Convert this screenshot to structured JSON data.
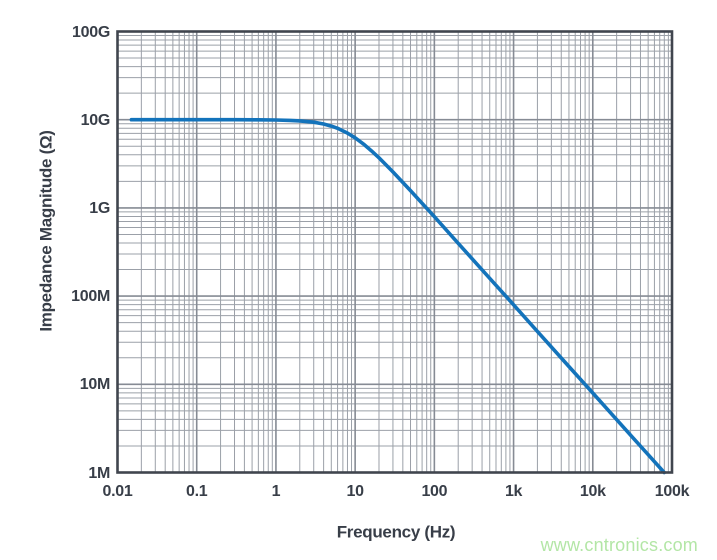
{
  "style": {
    "background": "#ffffff",
    "text_color": "#383e48",
    "frame_color": "#40454e",
    "grid_major_color": "#868b94",
    "grid_minor_color": "#9ba0a8",
    "curve_color": "#1373BB",
    "watermark_color": "#b3e6a6"
  },
  "watermark": {
    "text": "www.cntronics.com"
  },
  "chart_data": {
    "type": "line",
    "title": "",
    "xlabel": "Frequency (Hz)",
    "ylabel": "Impedance Magnitude (Ω)",
    "x_scale": "log",
    "y_scale": "log",
    "xlim": [
      0.01,
      100000
    ],
    "ylim": [
      1000000,
      100000000000
    ],
    "grid": "major and minor logarithmic gridlines on both axes",
    "legend": "none",
    "x_ticks": [
      {
        "value": 0.01,
        "label": "0.01"
      },
      {
        "value": 0.1,
        "label": "0.1"
      },
      {
        "value": 1,
        "label": "1"
      },
      {
        "value": 10,
        "label": "10"
      },
      {
        "value": 100,
        "label": "100"
      },
      {
        "value": 1000,
        "label": "1k"
      },
      {
        "value": 10000,
        "label": "10k"
      },
      {
        "value": 100000,
        "label": "100k"
      }
    ],
    "y_ticks": [
      {
        "value": 1000000.0,
        "label": "1M"
      },
      {
        "value": 10000000.0,
        "label": "10M"
      },
      {
        "value": 100000000.0,
        "label": "100M"
      },
      {
        "value": 1000000000.0,
        "label": "1G"
      },
      {
        "value": 10000000000.0,
        "label": "10G"
      },
      {
        "value": 100000000000.0,
        "label": "100G"
      }
    ],
    "series": [
      {
        "name": "Impedance magnitude",
        "color": "#1373BB",
        "line_width": 3.6,
        "description": "Flat at 10 GΩ from 0.015 Hz, single-pole roll-off (-20 dB/decade) with corner near 8 Hz, reaching 1 MΩ at about 80 kHz",
        "points": [
          [
            0.015,
            10000000000.0
          ],
          [
            0.05,
            10000000000.0
          ],
          [
            0.1,
            10000000000.0
          ],
          [
            0.3,
            9990000000.0
          ],
          [
            0.6,
            9970000000.0
          ],
          [
            1,
            9920000000.0
          ],
          [
            1.5,
            9830000000.0
          ],
          [
            2,
            9700000000.0
          ],
          [
            3,
            9360000000.0
          ],
          [
            4,
            8940000000.0
          ],
          [
            5,
            8470000000.0
          ],
          [
            6,
            7980000000.0
          ],
          [
            8,
            7050000000.0
          ],
          [
            10,
            6230000000.0
          ],
          [
            13,
            5220000000.0
          ],
          [
            16,
            4450000000.0
          ],
          [
            20,
            3700000000.0
          ],
          [
            30,
            2560000000.0
          ],
          [
            50,
            1570000000.0
          ],
          [
            80,
            990000000.0
          ],
          [
            100,
            794000000.0
          ],
          [
            200,
            397000000.0
          ],
          [
            500,
            159000000.0
          ],
          [
            1000,
            79600000.0
          ],
          [
            2000,
            39800000.0
          ],
          [
            5000,
            15900000.0
          ],
          [
            10000,
            7960000.0
          ],
          [
            20000,
            3980000.0
          ],
          [
            50000,
            1590000.0
          ],
          [
            79600,
            1000000.0
          ]
        ]
      }
    ]
  }
}
